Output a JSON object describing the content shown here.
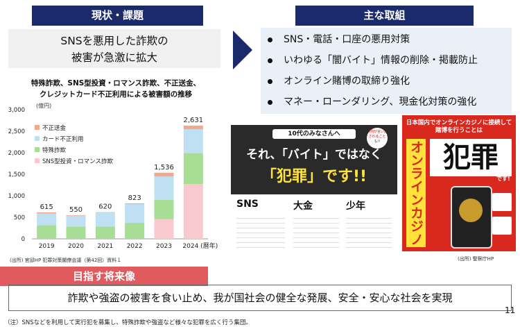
{
  "left_header": "現状・課題",
  "right_header": "主な取組",
  "problem": {
    "line1": "SNSを悪用した詐欺の",
    "line2": "被害が急激に拡大"
  },
  "measures": [
    "SNS・電話・口座の悪用対策",
    "いわゆる「闇バイト」情報の削除・掲載防止",
    "オンライン賭博の取締り強化",
    "マネー・ローンダリング、現金化対策の強化"
  ],
  "chart_heading": {
    "line1": "特殊詐欺、SNS型投資・ロマンス詐欺、不正送金、",
    "line2": "クレジットカード不正利用による被害額の推移"
  },
  "chart_data": {
    "type": "bar",
    "stacked": true,
    "unit_label": "(億円)",
    "xlabel_suffix": "(暦年)",
    "categories": [
      "2019",
      "2020",
      "2021",
      "2022",
      "2023",
      "2024"
    ],
    "totals": [
      615,
      550,
      620,
      823,
      "1,536",
      "2,631"
    ],
    "ylim": [
      0,
      3000
    ],
    "yticks": [
      "0",
      "500",
      "1,000",
      "1,500",
      "2,000",
      "2,500",
      "3,000"
    ],
    "series": [
      {
        "name": "SNS型投資・ロマンス詐欺",
        "color": "#f9c9d0",
        "values": [
          0,
          0,
          0,
          0,
          455,
          1272
        ]
      },
      {
        "name": "特殊詐欺",
        "color": "#a8dd96",
        "values": [
          316,
          285,
          282,
          370,
          453,
          722
        ]
      },
      {
        "name": "カード不正利用",
        "color": "#bfe0f2",
        "values": [
          274,
          253,
          331,
          436,
          541,
          555
        ]
      },
      {
        "name": "不正送金",
        "color": "#f4a88a",
        "values": [
          25,
          12,
          7,
          17,
          87,
          82
        ]
      }
    ],
    "legend_order": [
      "不正送金",
      "カード不正利用",
      "特殊詐欺",
      "SNS型投資・ロマンス詐欺"
    ]
  },
  "source_left": "(出所) 官邸HP 犯罪対策閣僚会議（第42回）資料１",
  "banner1": {
    "top": "10代のみなさんへ",
    "line1": "それ、「バイト」ではなく",
    "line2": "「犯罪」です!!",
    "col1": "SNS",
    "col2": "大金",
    "col3": "少年",
    "badge": "実刑が言い渡されることも!!"
  },
  "banner2": {
    "top": "日本国内でオンラインカジノに接続して賭博を行うことは",
    "big": "犯罪",
    "suffix": "です!",
    "vertical": "オンラインカジノ"
  },
  "source_right": "(出所) 警察庁HP",
  "vision_header": "目指す将来像",
  "vision": "詐欺や強盗の被害を食い止め、我が国社会の健全な発展、安全・安心な社会を実現",
  "page_number": "11",
  "footnote": "（注）SNSなどを利用して実行犯を募集し、特殊詐欺や強盗など様々な犯罪を広く行う集団。"
}
